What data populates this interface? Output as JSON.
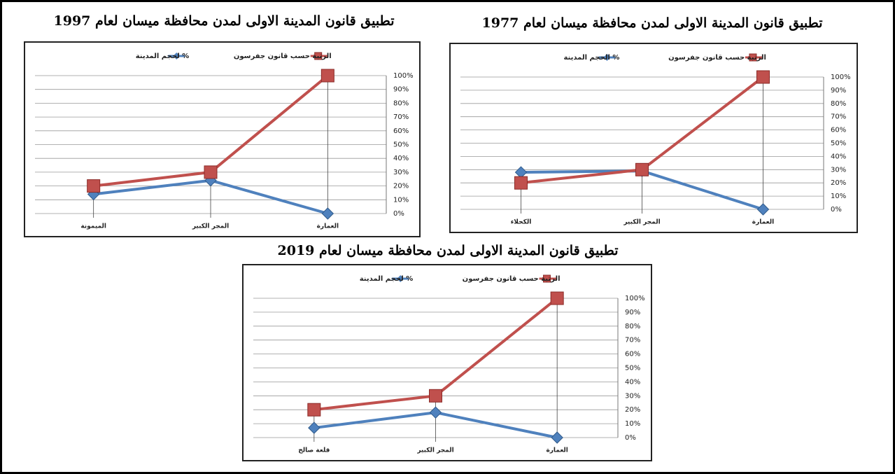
{
  "chart_data": [
    {
      "type": "line",
      "title": "تطبيق قانون المدينة الاولى لمدن محافظة ميسان لعام 1997",
      "categories": [
        "الميمونة",
        "المجر الكبير",
        "العمارة"
      ],
      "series": [
        {
          "name": "% لحجم المدينة",
          "color": "#4f81bd",
          "marker": "diamond",
          "values": [
            14,
            24,
            0
          ]
        },
        {
          "name": "الرتبة حسب قانون جفرسون",
          "color": "#c0504d",
          "marker": "square",
          "values": [
            20,
            30,
            100
          ]
        }
      ],
      "ylim": [
        0,
        100
      ],
      "yticks": [
        {
          "value": 0,
          "label": "0%"
        },
        {
          "value": 10,
          "label": "10%"
        },
        {
          "value": 20,
          "label": "20%"
        },
        {
          "value": 30,
          "label": "30%"
        },
        {
          "value": 40,
          "label": "40%"
        },
        {
          "value": 50,
          "label": "50%"
        },
        {
          "value": 60,
          "label": "60%"
        },
        {
          "value": 70,
          "label": "70%"
        },
        {
          "value": 80,
          "label": "80%"
        },
        {
          "value": 90,
          "label": "90%"
        },
        {
          "value": 100,
          "label": "100%"
        }
      ],
      "grid": true,
      "legend": "top"
    },
    {
      "type": "line",
      "title": "تطبيق قانون المدينة الاولى لمدن محافظة ميسان لعام 1977",
      "categories": [
        "الكحلاء",
        "المجر الكبير",
        "العمارة"
      ],
      "series": [
        {
          "name": "% الحجم المدينة",
          "color": "#4f81bd",
          "marker": "diamond",
          "values": [
            28,
            29,
            0
          ]
        },
        {
          "name": "الرتبة حسب قانون جفرسون",
          "color": "#c0504d",
          "marker": "square",
          "values": [
            20,
            30,
            100
          ]
        }
      ],
      "ylim": [
        0,
        100
      ],
      "yticks": [
        {
          "value": 0,
          "label": "0%"
        },
        {
          "value": 10,
          "label": "10%"
        },
        {
          "value": 20,
          "label": "20%"
        },
        {
          "value": 30,
          "label": "30%"
        },
        {
          "value": 40,
          "label": "40%"
        },
        {
          "value": 50,
          "label": "50%"
        },
        {
          "value": 60,
          "label": "60%"
        },
        {
          "value": 70,
          "label": "70%"
        },
        {
          "value": 80,
          "label": "80%"
        },
        {
          "value": 90,
          "label": "90%"
        },
        {
          "value": 100,
          "label": "100%"
        }
      ],
      "grid": true,
      "legend": "top"
    },
    {
      "type": "line",
      "title": "تطبيق قانون المدينة الاولى لمدن محافظة ميسان لعام 2019",
      "categories": [
        "قلعة صالح",
        "المجر الكبير",
        "العمارة"
      ],
      "series": [
        {
          "name": "% لحجم المدينة",
          "color": "#4f81bd",
          "marker": "diamond",
          "values": [
            7,
            18,
            0
          ]
        },
        {
          "name": "الرتبة حسب قانون جفرسون",
          "color": "#c0504d",
          "marker": "square",
          "values": [
            20,
            30,
            100
          ]
        }
      ],
      "ylim": [
        0,
        100
      ],
      "yticks": [
        {
          "value": 0,
          "label": "0%"
        },
        {
          "value": 10,
          "label": "10%"
        },
        {
          "value": 20,
          "label": "20%"
        },
        {
          "value": 30,
          "label": "30%"
        },
        {
          "value": 40,
          "label": "40%"
        },
        {
          "value": 50,
          "label": "50%"
        },
        {
          "value": 60,
          "label": "60%"
        },
        {
          "value": 70,
          "label": "70%"
        },
        {
          "value": 80,
          "label": "80%"
        },
        {
          "value": 90,
          "label": "90%"
        },
        {
          "value": 100,
          "label": "100%"
        }
      ],
      "grid": true,
      "legend": "top"
    }
  ]
}
